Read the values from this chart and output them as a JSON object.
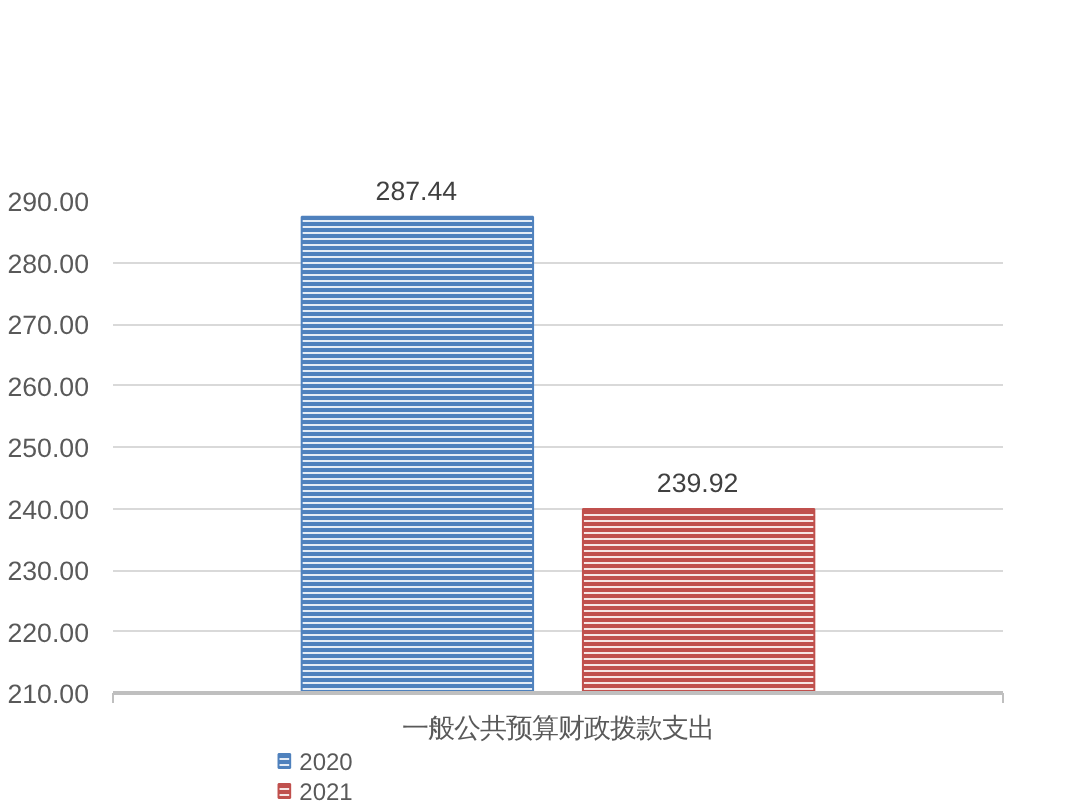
{
  "chart_data": {
    "type": "bar",
    "categories": [
      "一般公共预算财政拨款支出"
    ],
    "series": [
      {
        "name": "2020",
        "color": "#4f81bd",
        "values": [
          287.44
        ]
      },
      {
        "name": "2021",
        "color": "#c0504d",
        "values": [
          239.92
        ]
      }
    ],
    "ylim": [
      210,
      290
    ],
    "yticks": [
      {
        "value": 210,
        "label": "210.00"
      },
      {
        "value": 220,
        "label": "220.00"
      },
      {
        "value": 230,
        "label": "230.00"
      },
      {
        "value": 240,
        "label": "240.00"
      },
      {
        "value": 250,
        "label": "250.00"
      },
      {
        "value": 260,
        "label": "260.00"
      },
      {
        "value": 270,
        "label": "270.00"
      },
      {
        "value": 280,
        "label": "280.00"
      },
      {
        "value": 290,
        "label": "290.00"
      }
    ],
    "grid": "y",
    "legend": "bottom left",
    "data_labels": true
  }
}
